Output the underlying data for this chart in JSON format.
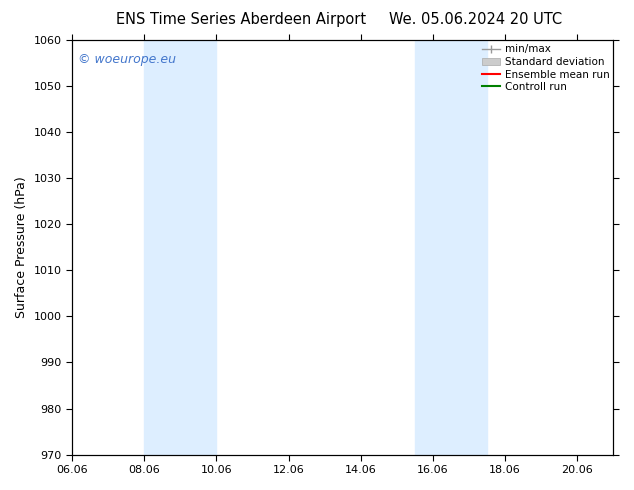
{
  "title_left": "ENS Time Series Aberdeen Airport",
  "title_right": "We. 05.06.2024 20 UTC",
  "ylabel": "Surface Pressure (hPa)",
  "ylim": [
    970,
    1060
  ],
  "yticks": [
    970,
    980,
    990,
    1000,
    1010,
    1020,
    1030,
    1040,
    1050,
    1060
  ],
  "xtick_labels": [
    "06.06",
    "08.06",
    "10.06",
    "12.06",
    "14.06",
    "16.06",
    "18.06",
    "20.06"
  ],
  "xtick_positions": [
    0,
    2,
    4,
    6,
    8,
    10,
    12,
    14
  ],
  "x_min": 0,
  "x_max": 15,
  "shaded_bands": [
    {
      "x_start": 2.0,
      "x_end": 4.0,
      "color": "#ddeeff"
    },
    {
      "x_start": 9.5,
      "x_end": 10.5,
      "color": "#ddeeff"
    },
    {
      "x_start": 10.5,
      "x_end": 11.5,
      "color": "#ddeeff"
    }
  ],
  "watermark_text": "© woeurope.eu",
  "watermark_color": "#4477cc",
  "legend_labels": [
    "min/max",
    "Standard deviation",
    "Ensemble mean run",
    "Controll run"
  ],
  "legend_colors": [
    "#999999",
    "#cccccc",
    "red",
    "green"
  ],
  "bg_color": "#ffffff",
  "plot_bg_color": "#ffffff",
  "title_fontsize": 10.5,
  "ylabel_fontsize": 9,
  "tick_fontsize": 8,
  "watermark_fontsize": 9,
  "legend_fontsize": 7.5
}
